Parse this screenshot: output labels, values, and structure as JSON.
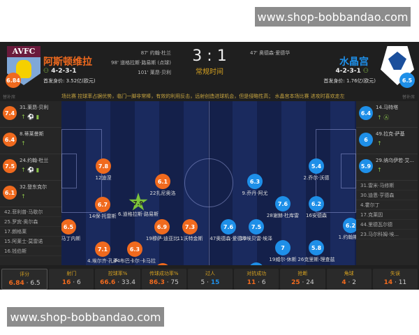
{
  "watermark_top": "www.shop-bobbandao.com",
  "watermark_bottom": "www.shop-bobbandao.com",
  "colors": {
    "home": "#f06a1e",
    "away": "#1e8fe8",
    "summary": "#c8a640",
    "stat_label": "#d4a020"
  },
  "home": {
    "name": "阿斯顿维拉",
    "crest_text": "AVFC",
    "formation": "4-2-3-1",
    "value": "首发身价: 3.52亿(欧元)",
    "rating": "6.84",
    "goals": [
      "87' 约翰·杜兰",
      "98' 道格拉斯·路易斯 (点球)",
      "101' 莱昂·贝利"
    ]
  },
  "away": {
    "name": "水晶宫",
    "formation": "4-2-3-1",
    "value": "首发身价: 1.76亿(欧元)",
    "rating": "6.5",
    "goals": [
      "47' 奥德森·爱德华"
    ]
  },
  "score": "3 : 1",
  "period": "常规时间",
  "bench_label": "替补席",
  "summary": "场比赛 控球率占据优势，临门一脚非常棒，有效的利用反击，远射创造进球机会，但是侵略性高； 水晶宫本场比赛 进攻时喜欢走左",
  "home_subs": [
    {
      "rating": "7.4",
      "name": "31.莱昂·贝利",
      "icons": "↑ ⚽ ▮"
    },
    {
      "rating": "6.4",
      "name": "8.蒂莱曼斯",
      "icons": "↑"
    },
    {
      "rating": "7.5",
      "name": "24.约翰·杜兰",
      "icons": "↑ ⚽ ▮"
    },
    {
      "rating": "6.1",
      "name": "32.登东克尔",
      "icons": "↑"
    }
  ],
  "home_reserves": [
    "42.菲利普·马歇尔",
    "25.罗宾·奥尔森",
    "17.朗格莱",
    "15.阿莱士·莫雷诺",
    "16.钱伯斯"
  ],
  "away_subs": [
    {
      "rating": "6.4",
      "name": "14.马特塔",
      "icons": "↑ Ⓐ"
    },
    {
      "rating": "6",
      "name": "49.拉克-萨基",
      "icons": "↑"
    },
    {
      "rating": "5.9",
      "name": "29.纳乌伊若·艾...",
      "icons": "↑"
    }
  ],
  "away_reserves": [
    "31.雷米·马修斯",
    "30.迪恩·亨德森",
    "4.霍尔丁",
    "17.克莱因",
    "44.里德瓦尔德",
    "23.马尔科姆·埃..."
  ],
  "home_players": [
    {
      "r": "7.8",
      "n": "12迪涅"
    },
    {
      "r": "6.1",
      "n": "22扎尼奥洛"
    },
    {
      "r": "7.9",
      "n": "6.道格拉斯·路易斯",
      "star": true
    },
    {
      "r": "6.7",
      "n": "14保·托雷斯"
    },
    {
      "r": "6.5",
      "n": "1.马丁内斯"
    },
    {
      "r": "6.9",
      "n": "19穆萨·迪亚比"
    },
    {
      "r": "7.3",
      "n": "11沃特金斯"
    },
    {
      "r": "7.1",
      "n": "4.埃尔齐·孔萨"
    },
    {
      "r": "6.3",
      "n": "44布巴卡尔·卡马拉"
    },
    {
      "r": "6.2",
      "n": "7.约翰·麦克金"
    },
    {
      "r": "6.5",
      "n": "2.马蒂·卡什"
    }
  ],
  "away_players": [
    {
      "r": "5.4",
      "n": "2.乔尔·沃德"
    },
    {
      "r": "6.3",
      "n": "9.乔丹·阿尤"
    },
    {
      "r": "7.6",
      "n": "28谢赫·杜库雷"
    },
    {
      "r": "6.2",
      "n": "16安德森"
    },
    {
      "r": "7.6",
      "n": "47奥德森·爱德华"
    },
    {
      "r": "7.5",
      "n": "10埃贝雷·埃泽"
    },
    {
      "r": "6.2",
      "n": "1.约翰斯通"
    },
    {
      "r": "7",
      "n": "19威尔·休斯"
    },
    {
      "r": "5.8",
      "n": "26克里斯·理查兹"
    },
    {
      "r": "6.6",
      "n": "15施鲁普"
    },
    {
      "r": "6.4",
      "n": "3.蒂里克·米切尔"
    }
  ],
  "stats": [
    {
      "label": "评分",
      "home": "6.84",
      "away": "6.5"
    },
    {
      "label": "射门",
      "home": "16",
      "away": "6"
    },
    {
      "label": "控球率%",
      "home": "66.6",
      "away": "33.4"
    },
    {
      "label": "传球成功率%",
      "home": "86.3",
      "away": "75"
    },
    {
      "label": "过人",
      "home": "5",
      "away": "15",
      "away_lead": true
    },
    {
      "label": "对抗成功",
      "home": "11",
      "away": "6"
    },
    {
      "label": "抢断",
      "home": "25",
      "away": "24"
    },
    {
      "label": "角球",
      "home": "4",
      "away": "2"
    },
    {
      "label": "失误",
      "home": "14",
      "away": "11"
    }
  ]
}
